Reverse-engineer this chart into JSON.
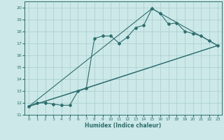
{
  "xlabel": "Humidex (Indice chaleur)",
  "bg_color": "#cce8e8",
  "grid_color": "#aacccc",
  "line_color": "#2d6e6e",
  "series1_x": [
    0,
    1,
    2,
    3,
    4,
    5,
    6,
    7,
    8,
    9,
    10,
    11,
    12,
    13,
    14,
    15,
    16,
    17,
    18,
    19,
    20,
    21,
    22,
    23
  ],
  "series1_y": [
    11.7,
    12.0,
    12.0,
    11.9,
    11.8,
    11.8,
    13.0,
    13.2,
    17.4,
    17.6,
    17.6,
    17.0,
    17.5,
    18.3,
    18.5,
    19.9,
    19.5,
    18.6,
    18.7,
    18.0,
    17.8,
    17.6,
    17.2,
    16.8
  ],
  "series2_x": [
    0,
    6,
    23
  ],
  "series2_y": [
    11.7,
    13.0,
    16.8
  ],
  "series3_x": [
    0,
    15,
    23
  ],
  "series3_y": [
    11.7,
    19.9,
    16.8
  ],
  "series4_x": [
    0,
    23
  ],
  "series4_y": [
    11.7,
    16.8
  ],
  "xlim": [
    -0.5,
    23.5
  ],
  "ylim": [
    11,
    20.5
  ],
  "xticks": [
    0,
    1,
    2,
    3,
    4,
    5,
    6,
    7,
    8,
    9,
    10,
    11,
    12,
    13,
    14,
    15,
    16,
    17,
    18,
    19,
    20,
    21,
    22,
    23
  ],
  "yticks": [
    11,
    12,
    13,
    14,
    15,
    16,
    17,
    18,
    19,
    20
  ]
}
